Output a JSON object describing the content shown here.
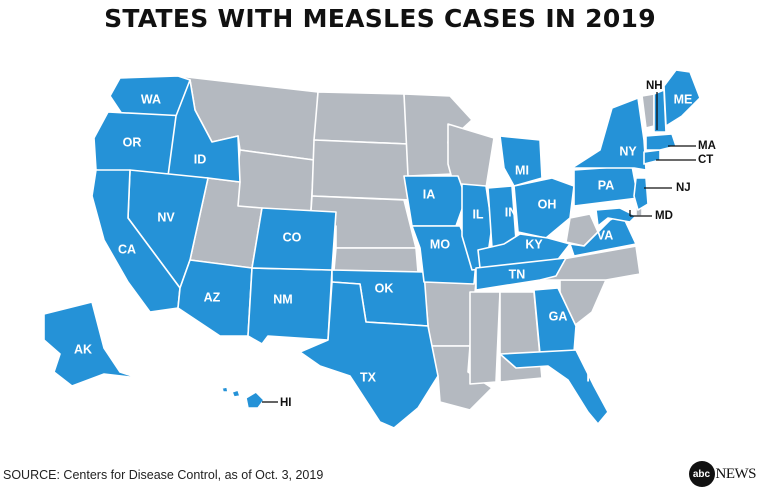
{
  "title": "STATES WITH MEASLES CASES IN 2019",
  "source": "SOURCE: Centers for Disease Control, as of Oct. 3, 2019",
  "logo": {
    "mark": "abc",
    "word": "NEWS"
  },
  "colors": {
    "with_cases": "#2592d7",
    "without_cases": "#b4b9c0",
    "border": "#ffffff"
  },
  "states_with_cases": [
    "WA",
    "OR",
    "ID",
    "CA",
    "NV",
    "AZ",
    "NM",
    "CO",
    "TX",
    "OK",
    "IA",
    "MO",
    "IL",
    "IN",
    "MI",
    "OH",
    "KY",
    "TN",
    "GA",
    "FL",
    "PA",
    "NY",
    "VA",
    "NJ",
    "MD",
    "CT",
    "MA",
    "NH",
    "ME",
    "AK",
    "HI"
  ],
  "labels": {
    "WA": "WA",
    "OR": "OR",
    "ID": "ID",
    "CA": "CA",
    "NV": "NV",
    "AZ": "AZ",
    "NM": "NM",
    "CO": "CO",
    "TX": "TX",
    "OK": "OK",
    "IA": "IA",
    "MO": "MO",
    "IL": "IL",
    "IN": "IN",
    "MI": "MI",
    "OH": "OH",
    "KY": "KY",
    "TN": "TN",
    "GA": "GA",
    "FL": "FL",
    "PA": "PA",
    "NY": "NY",
    "VA": "VA",
    "ME": "ME",
    "AK": "AK"
  },
  "callouts": {
    "NH": "NH",
    "MA": "MA",
    "CT": "CT",
    "NJ": "NJ",
    "MD": "MD",
    "HI": "HI"
  }
}
